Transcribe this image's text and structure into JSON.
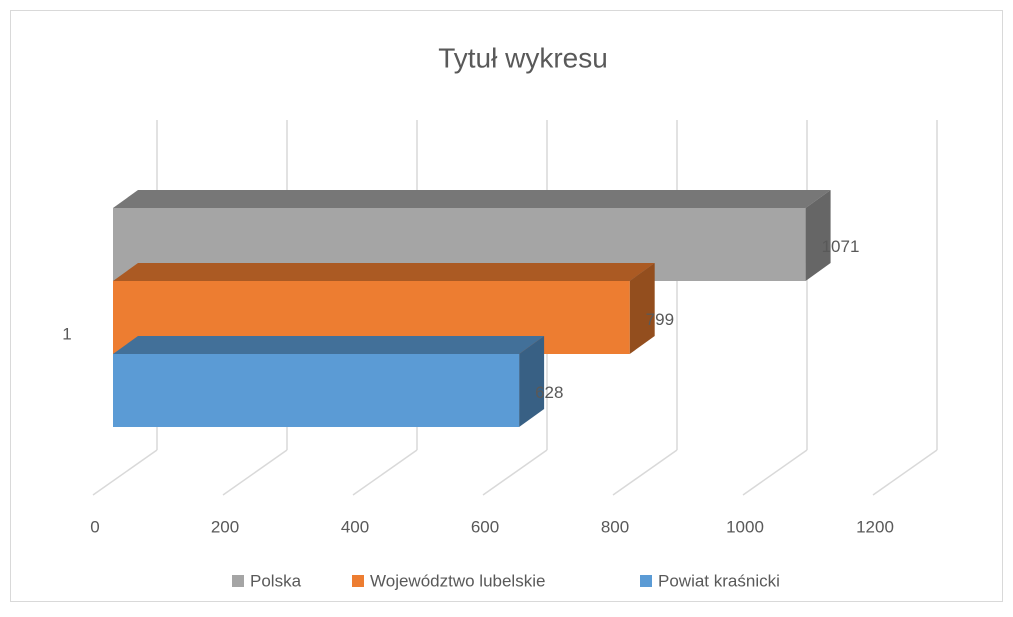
{
  "chart_data": {
    "type": "bar3d_horizontal",
    "title": "Tytuł wykresu",
    "categories": [
      "1"
    ],
    "series": [
      {
        "name": "Polska",
        "color": "#a5a5a5",
        "values": [
          1071
        ]
      },
      {
        "name": "Województwo lubelskie",
        "color": "#ed7d31",
        "values": [
          799
        ]
      },
      {
        "name": "Powiat kraśnicki",
        "color": "#5b9bd5",
        "values": [
          628
        ]
      }
    ],
    "xlim": [
      0,
      1200
    ],
    "xticks": [
      0,
      200,
      400,
      600,
      800,
      1000,
      1200
    ],
    "grid": true,
    "legend": "bottom"
  }
}
